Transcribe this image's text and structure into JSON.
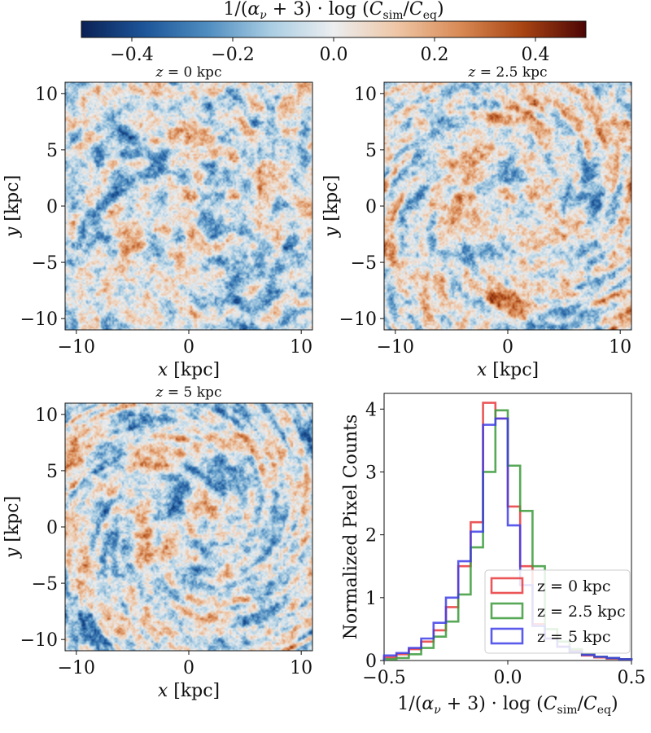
{
  "colorbar": {
    "label": "1/(αν + 3) · log (Csim/Ceq)",
    "label_parts": {
      "prefix": "1/(",
      "alpha": "α",
      "nu": "ν",
      "mid": " + 3) · log (",
      "c": "C",
      "sim": "sim",
      "slash": "/",
      "eq": "eq",
      "close": ")"
    },
    "vmin": -0.5,
    "vmax": 0.5,
    "ticks": [
      "−0.4",
      "−0.2",
      "0.0",
      "0.2",
      "0.4"
    ],
    "tick_values": [
      -0.4,
      -0.2,
      0.0,
      0.2,
      0.4
    ],
    "colormap": [
      "#0a2155",
      "#1d5599",
      "#4f8dc0",
      "#a9cde3",
      "#eceef0",
      "#eec6a6",
      "#d98a55",
      "#a84412",
      "#4c0505"
    ]
  },
  "chart_data": [
    {
      "type": "heatmap",
      "title": "z = 0 kpc",
      "title_parts": {
        "var": "z",
        "eq": " = 0 kpc"
      },
      "xlabel": "x [kpc]",
      "ylabel": "y [kpc]",
      "xlim": [
        -11,
        11
      ],
      "ylim": [
        -11,
        11
      ],
      "xticks": [
        "−10",
        "0",
        "10"
      ],
      "xtick_values": [
        -10,
        0,
        10
      ],
      "yticks": [
        "10",
        "5",
        "0",
        "−5",
        "−10"
      ],
      "ytick_values": [
        10,
        5,
        0,
        -5,
        -10
      ],
      "seed": 11,
      "bias": -0.04,
      "swirl": 0.18
    },
    {
      "type": "heatmap",
      "title": "z = 2.5 kpc",
      "title_parts": {
        "var": "z",
        "eq": " = 2.5 kpc"
      },
      "xlabel": "x [kpc]",
      "ylabel": "y [kpc]",
      "xlim": [
        -11,
        11
      ],
      "ylim": [
        -11,
        11
      ],
      "xticks": [
        "−10",
        "0",
        "10"
      ],
      "xtick_values": [
        -10,
        0,
        10
      ],
      "yticks": [
        "10",
        "5",
        "0",
        "−5",
        "−10"
      ],
      "ytick_values": [
        10,
        5,
        0,
        -5,
        -10
      ],
      "seed": 23,
      "bias": 0.0,
      "swirl": 0.55
    },
    {
      "type": "heatmap",
      "title": "z = 5 kpc",
      "title_parts": {
        "var": "z",
        "eq": " = 5 kpc"
      },
      "xlabel": "x [kpc]",
      "ylabel": "y [kpc]",
      "xlim": [
        -11,
        11
      ],
      "ylim": [
        -11,
        11
      ],
      "xticks": [
        "−10",
        "0",
        "10"
      ],
      "xtick_values": [
        -10,
        0,
        10
      ],
      "yticks": [
        "10",
        "5",
        "0",
        "−5",
        "−10"
      ],
      "ytick_values": [
        10,
        5,
        0,
        -5,
        -10
      ],
      "seed": 37,
      "bias": -0.03,
      "swirl": 0.7
    },
    {
      "type": "histogram",
      "xlabel": "1/(αν + 3) · log (Csim/Ceq)",
      "ylabel": "Normalized Pixel Counts",
      "xlim": [
        -0.5,
        0.5
      ],
      "ylim": [
        0,
        4.25
      ],
      "xticks": [
        "−0.5",
        "0.0",
        "0.5"
      ],
      "xtick_values": [
        -0.5,
        0.0,
        0.5
      ],
      "yticks": [
        "0",
        "1",
        "2",
        "3",
        "4"
      ],
      "ytick_values": [
        0,
        1,
        2,
        3,
        4
      ],
      "legend_position": "lower-right",
      "bin_edges": [
        -0.5,
        -0.45,
        -0.4,
        -0.35,
        -0.3,
        -0.25,
        -0.2,
        -0.15,
        -0.1,
        -0.05,
        0.0,
        0.05,
        0.1,
        0.15,
        0.2,
        0.25,
        0.3,
        0.35,
        0.4,
        0.45,
        0.5
      ],
      "series": [
        {
          "name": "z = 0 kpc",
          "color": "#e8383b",
          "values": [
            0.05,
            0.1,
            0.18,
            0.3,
            0.48,
            0.85,
            1.5,
            2.2,
            4.1,
            3.85,
            2.45,
            1.5,
            0.58,
            0.35,
            0.22,
            0.15,
            0.08,
            0.05,
            0.03,
            0.02
          ]
        },
        {
          "name": "z = 2.5 kpc",
          "color": "#3a9a3a",
          "values": [
            0.02,
            0.04,
            0.1,
            0.2,
            0.38,
            0.62,
            1.05,
            1.8,
            3.0,
            3.98,
            3.1,
            2.38,
            1.5,
            0.5,
            0.3,
            0.18,
            0.1,
            0.06,
            0.04,
            0.02
          ]
        },
        {
          "name": "z = 5 kpc",
          "color": "#3d3de8",
          "values": [
            0.08,
            0.12,
            0.2,
            0.35,
            0.6,
            1.0,
            1.58,
            2.05,
            3.75,
            3.85,
            2.15,
            1.2,
            0.55,
            0.35,
            0.22,
            0.14,
            0.09,
            0.06,
            0.04,
            0.02
          ]
        }
      ]
    }
  ]
}
